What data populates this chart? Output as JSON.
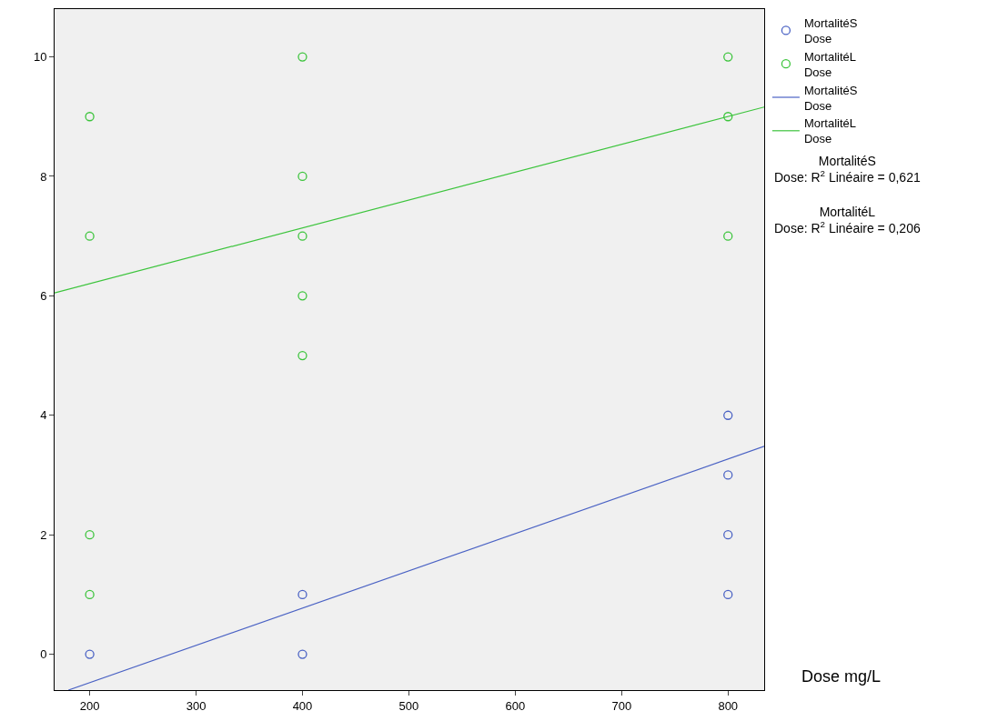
{
  "chart_data": {
    "type": "scatter",
    "xlabel": "Dose mg/L",
    "marker": "circle",
    "grid": false,
    "legend": "top right",
    "xlim": [
      167,
      834
    ],
    "ylim": [
      -0.6,
      10.8
    ],
    "xticks": [
      200,
      300,
      400,
      500,
      600,
      700,
      800
    ],
    "yticks": [
      0,
      2,
      4,
      6,
      8,
      10
    ],
    "series": [
      {
        "name": "MortalitéS\nDose",
        "color": "#4a62c4",
        "x": [
          200,
          400,
          400,
          800,
          800,
          800,
          800
        ],
        "values": [
          0,
          1,
          0,
          4,
          3,
          2,
          1
        ]
      },
      {
        "name": "MortalitéL\nDose",
        "color": "#3cc43c",
        "x": [
          200,
          200,
          200,
          200,
          400,
          400,
          400,
          400,
          400,
          800,
          800,
          800
        ],
        "values": [
          9,
          7,
          2,
          1,
          10,
          8,
          7,
          6,
          5,
          10,
          9,
          7
        ]
      },
      {
        "name": "MortalitéS\nDose",
        "type": "line",
        "marker": "none",
        "color": "#4a62c4",
        "x": [
          180,
          834
        ],
        "values": [
          -0.6,
          3.48
        ]
      },
      {
        "name": "MortalitéL\nDose",
        "type": "line",
        "marker": "none",
        "color": "#3cc43c",
        "x": [
          167,
          834
        ],
        "values": [
          6.05,
          9.16
        ]
      }
    ],
    "annotations": [
      "MortalitéS\nDose: R$^{2}$ Linéaire = 0,621",
      "MortalitéL\nDose: R$^{2}$ Linéaire = 0,206"
    ]
  }
}
